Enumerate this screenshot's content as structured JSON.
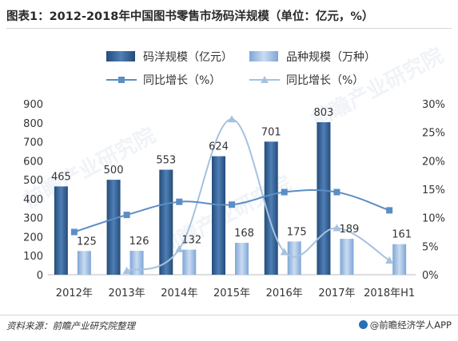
{
  "title": "图表1：2012-2018年中国图书零售市场码洋规模（单位：亿元，%）",
  "source": "资料来源：前瞻产业研究院整理",
  "brand": "@前瞻经济学人APP",
  "watermark_text": "前瞻产业研究院",
  "chart_data": {
    "type": "bar",
    "categories": [
      "2012年",
      "2013年",
      "2014年",
      "2015年",
      "2016年",
      "2017年",
      "2018年H1"
    ],
    "left_axis": {
      "min": 0,
      "max": 900,
      "step": 100
    },
    "right_axis": {
      "min": 0,
      "max": 30,
      "step": 5,
      "unit": "%"
    },
    "legend_position": "top",
    "series": [
      {
        "name": "码洋规模（亿元）",
        "kind": "bar",
        "axis": "left",
        "color": "#2c5a8c",
        "values": [
          465,
          500,
          553,
          624,
          701,
          803,
          161
        ],
        "labels": [
          "465",
          "500",
          "553",
          "624",
          "701",
          "803",
          ""
        ]
      },
      {
        "name": "品种规模（万种）",
        "kind": "bar",
        "axis": "left",
        "color": "#8fb3de",
        "values": [
          125,
          126,
          132,
          168,
          175,
          189,
          161
        ],
        "labels": [
          "125",
          "126",
          "132",
          "168",
          "175",
          "189",
          "161"
        ]
      },
      {
        "name": "同比增长（%）",
        "kind": "line",
        "axis": "right",
        "color": "#5b8ec4",
        "marker": "square",
        "values": [
          7.5,
          10.5,
          12.8,
          12.3,
          14.5,
          14.5,
          11.3
        ]
      },
      {
        "name": "同比增长（%）",
        "kind": "line",
        "axis": "right",
        "color": "#a6c1e0",
        "marker": "triangle",
        "values": [
          null,
          0.7,
          4.5,
          27.3,
          4.0,
          8.2,
          2.5
        ]
      }
    ]
  }
}
